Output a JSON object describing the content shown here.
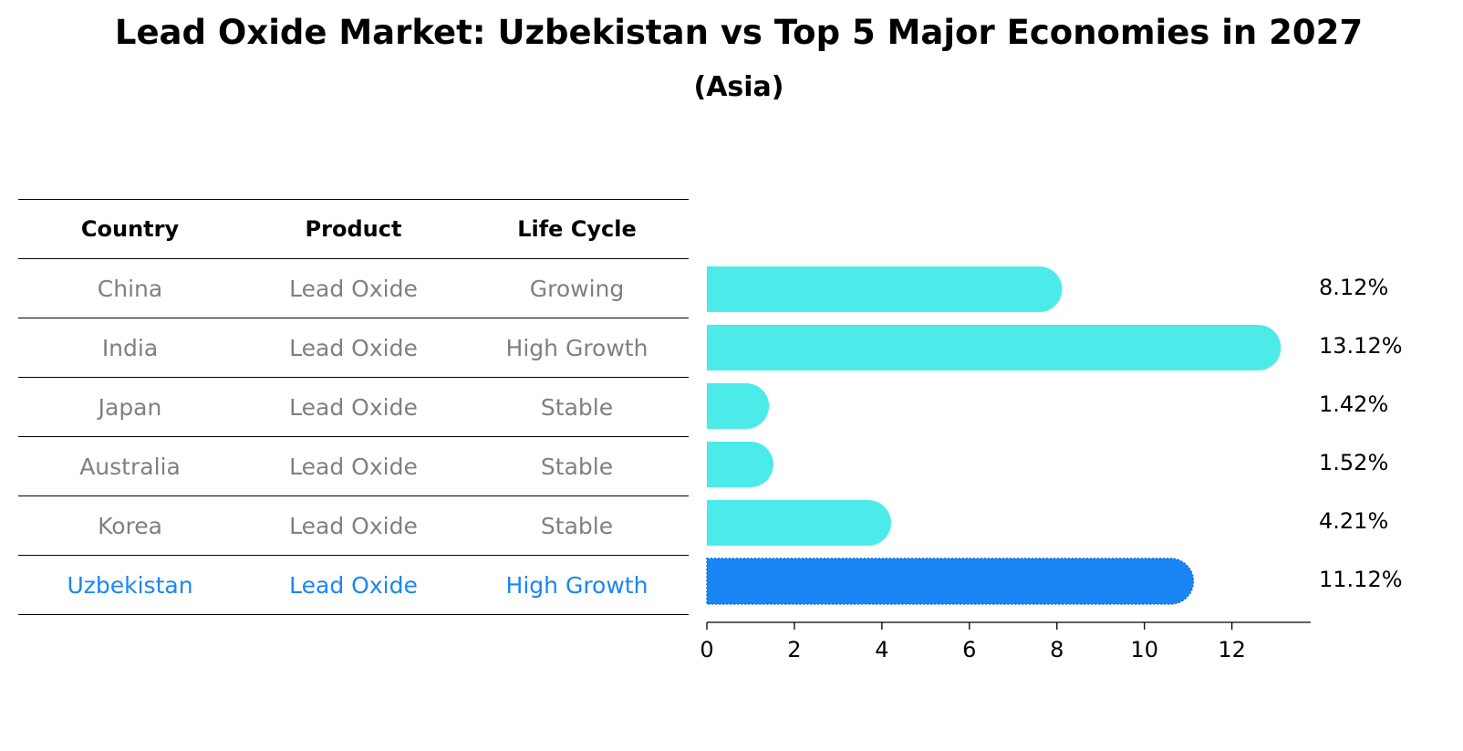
{
  "title": "Lead Oxide Market: Uzbekistan vs Top 5 Major Economies in 2027",
  "subtitle": "(Asia)",
  "table": {
    "headers": [
      "Country",
      "Product",
      "Life Cycle"
    ],
    "rows": [
      {
        "country": "China",
        "product": "Lead Oxide",
        "life_cycle": "Growing"
      },
      {
        "country": "India",
        "product": "Lead Oxide",
        "life_cycle": "High Growth"
      },
      {
        "country": "Japan",
        "product": "Lead Oxide",
        "life_cycle": "Stable"
      },
      {
        "country": "Australia",
        "product": "Lead Oxide",
        "life_cycle": "Stable"
      },
      {
        "country": "Korea",
        "product": "Lead Oxide",
        "life_cycle": "Stable"
      },
      {
        "country": "Uzbekistan",
        "product": "Lead Oxide",
        "life_cycle": "High Growth"
      }
    ],
    "highlight_row": 5
  },
  "colors": {
    "bar": "#4deaea",
    "highlight": "#1a86f5",
    "row_text": "#808080",
    "highlight_text": "#1a86f5"
  },
  "chart_data": {
    "type": "bar",
    "orientation": "horizontal",
    "categories": [
      "China",
      "India",
      "Japan",
      "Australia",
      "Korea",
      "Uzbekistan"
    ],
    "values": [
      8.12,
      13.12,
      1.42,
      1.52,
      4.21,
      11.12
    ],
    "value_labels": [
      "8.12%",
      "13.12%",
      "1.42%",
      "1.52%",
      "4.21%",
      "11.12%"
    ],
    "xticks": [
      0,
      2,
      4,
      6,
      8,
      10,
      12
    ],
    "xlim": [
      0,
      13.8
    ],
    "xlabel": "",
    "ylabel": "",
    "grid": false,
    "highlight_index": 5
  }
}
